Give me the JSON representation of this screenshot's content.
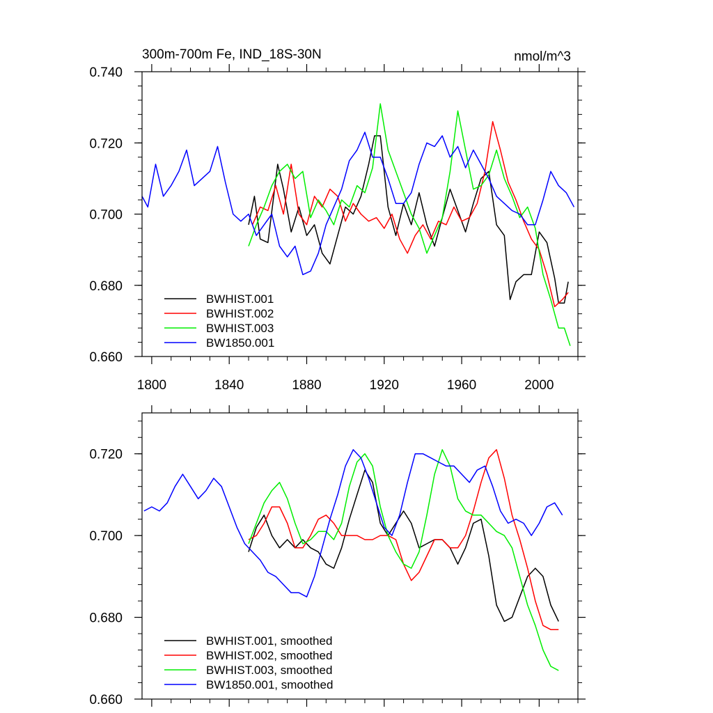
{
  "chart_data": [
    {
      "type": "line",
      "title": "300m-700m Fe, IND_18S-30N",
      "units": "nmol/m^3",
      "xlim": [
        1795,
        2020
      ],
      "ylim": [
        0.66,
        0.74
      ],
      "x_ticks": [
        1800,
        1840,
        1880,
        1920,
        1960,
        2000
      ],
      "y_ticks": [
        0.66,
        0.68,
        0.7,
        0.72,
        0.74
      ],
      "y_tick_labels": [
        "0.660",
        "0.680",
        "0.700",
        "0.720",
        "0.740"
      ],
      "x_tick_labels": [
        "1800",
        "1840",
        "1880",
        "1920",
        "1960",
        "2000"
      ],
      "legend_position": "bottom-left",
      "series": [
        {
          "name": "BWHIST.001",
          "color": "#000000",
          "x": [
            1850,
            1853,
            1856,
            1860,
            1865,
            1868,
            1872,
            1876,
            1880,
            1884,
            1888,
            1892,
            1896,
            1900,
            1904,
            1908,
            1912,
            1915,
            1918,
            1922,
            1926,
            1930,
            1934,
            1938,
            1942,
            1946,
            1950,
            1954,
            1958,
            1962,
            1966,
            1970,
            1974,
            1978,
            1982,
            1985,
            1988,
            1992,
            1996,
            2000,
            2004,
            2008,
            2010,
            2013,
            2015
          ],
          "values": [
            0.697,
            0.705,
            0.693,
            0.692,
            0.714,
            0.707,
            0.695,
            0.702,
            0.694,
            0.697,
            0.689,
            0.686,
            0.694,
            0.702,
            0.7,
            0.705,
            0.714,
            0.722,
            0.722,
            0.702,
            0.694,
            0.703,
            0.697,
            0.706,
            0.697,
            0.691,
            0.699,
            0.707,
            0.701,
            0.695,
            0.703,
            0.71,
            0.712,
            0.697,
            0.694,
            0.676,
            0.681,
            0.683,
            0.683,
            0.695,
            0.692,
            0.682,
            0.675,
            0.675,
            0.681
          ]
        },
        {
          "name": "BWHIST.002",
          "color": "#ff0000",
          "x": [
            1852,
            1856,
            1860,
            1864,
            1868,
            1872,
            1876,
            1880,
            1884,
            1888,
            1892,
            1896,
            1900,
            1904,
            1908,
            1912,
            1916,
            1920,
            1924,
            1928,
            1932,
            1936,
            1940,
            1944,
            1948,
            1952,
            1956,
            1960,
            1964,
            1968,
            1972,
            1976,
            1980,
            1984,
            1988,
            1992,
            1996,
            2000,
            2004,
            2008,
            2012,
            2015
          ],
          "values": [
            0.697,
            0.702,
            0.701,
            0.708,
            0.7,
            0.714,
            0.7,
            0.697,
            0.705,
            0.702,
            0.707,
            0.705,
            0.698,
            0.703,
            0.7,
            0.698,
            0.699,
            0.696,
            0.7,
            0.693,
            0.689,
            0.694,
            0.697,
            0.693,
            0.698,
            0.697,
            0.702,
            0.698,
            0.699,
            0.703,
            0.712,
            0.726,
            0.718,
            0.709,
            0.704,
            0.698,
            0.693,
            0.69,
            0.683,
            0.674,
            0.676,
            0.678
          ]
        },
        {
          "name": "BWHIST.003",
          "color": "#00ee00",
          "x": [
            1850,
            1854,
            1858,
            1862,
            1866,
            1870,
            1874,
            1878,
            1882,
            1886,
            1890,
            1894,
            1898,
            1902,
            1906,
            1910,
            1914,
            1918,
            1922,
            1926,
            1930,
            1934,
            1938,
            1942,
            1946,
            1950,
            1954,
            1958,
            1962,
            1966,
            1970,
            1974,
            1978,
            1982,
            1986,
            1990,
            1994,
            1998,
            2002,
            2006,
            2010,
            2013,
            2016
          ],
          "values": [
            0.691,
            0.697,
            0.702,
            0.708,
            0.712,
            0.714,
            0.71,
            0.712,
            0.699,
            0.704,
            0.701,
            0.697,
            0.704,
            0.702,
            0.708,
            0.706,
            0.713,
            0.731,
            0.718,
            0.712,
            0.706,
            0.7,
            0.696,
            0.689,
            0.694,
            0.699,
            0.712,
            0.729,
            0.718,
            0.707,
            0.708,
            0.711,
            0.718,
            0.71,
            0.705,
            0.699,
            0.702,
            0.696,
            0.683,
            0.676,
            0.668,
            0.668,
            0.663
          ]
        },
        {
          "name": "BW1850.001",
          "color": "#0000ff",
          "x": [
            1795,
            1798,
            1802,
            1806,
            1810,
            1814,
            1818,
            1822,
            1826,
            1830,
            1834,
            1838,
            1842,
            1846,
            1850,
            1854,
            1858,
            1862,
            1866,
            1870,
            1874,
            1878,
            1882,
            1886,
            1890,
            1894,
            1898,
            1902,
            1906,
            1910,
            1914,
            1918,
            1922,
            1926,
            1930,
            1934,
            1938,
            1942,
            1946,
            1950,
            1954,
            1958,
            1962,
            1966,
            1970,
            1974,
            1978,
            1982,
            1986,
            1990,
            1994,
            1998,
            2002,
            2006,
            2010,
            2014,
            2018
          ],
          "values": [
            0.705,
            0.702,
            0.714,
            0.705,
            0.708,
            0.712,
            0.718,
            0.708,
            0.71,
            0.712,
            0.719,
            0.709,
            0.7,
            0.698,
            0.7,
            0.694,
            0.697,
            0.7,
            0.691,
            0.688,
            0.691,
            0.683,
            0.684,
            0.689,
            0.697,
            0.702,
            0.707,
            0.715,
            0.718,
            0.723,
            0.716,
            0.716,
            0.71,
            0.703,
            0.703,
            0.706,
            0.714,
            0.72,
            0.719,
            0.722,
            0.716,
            0.719,
            0.713,
            0.718,
            0.714,
            0.71,
            0.705,
            0.703,
            0.701,
            0.7,
            0.697,
            0.697,
            0.704,
            0.712,
            0.708,
            0.706,
            0.702
          ]
        }
      ]
    },
    {
      "type": "line",
      "title": "",
      "xlim": [
        1795,
        2020
      ],
      "ylim": [
        0.66,
        0.73
      ],
      "x_ticks": [
        1800,
        1840,
        1880,
        1920,
        1960,
        2000
      ],
      "y_ticks": [
        0.66,
        0.68,
        0.7,
        0.72
      ],
      "y_tick_labels": [
        "0.660",
        "0.680",
        "0.700",
        "0.720"
      ],
      "legend_position": "bottom-left",
      "series": [
        {
          "name": "BWHIST.001, smoothed",
          "color": "#000000",
          "x": [
            1850,
            1854,
            1858,
            1862,
            1866,
            1870,
            1874,
            1878,
            1882,
            1886,
            1890,
            1894,
            1898,
            1902,
            1906,
            1910,
            1914,
            1918,
            1922,
            1926,
            1930,
            1934,
            1938,
            1942,
            1946,
            1950,
            1954,
            1958,
            1962,
            1966,
            1970,
            1974,
            1978,
            1982,
            1986,
            1990,
            1994,
            1998,
            2002,
            2006,
            2010
          ],
          "values": [
            0.696,
            0.702,
            0.705,
            0.7,
            0.697,
            0.699,
            0.697,
            0.699,
            0.697,
            0.696,
            0.693,
            0.692,
            0.697,
            0.704,
            0.71,
            0.716,
            0.713,
            0.703,
            0.7,
            0.703,
            0.706,
            0.703,
            0.697,
            0.698,
            0.699,
            0.699,
            0.697,
            0.693,
            0.697,
            0.703,
            0.704,
            0.695,
            0.683,
            0.679,
            0.68,
            0.685,
            0.69,
            0.692,
            0.69,
            0.683,
            0.679
          ]
        },
        {
          "name": "BWHIST.002, smoothed",
          "color": "#ff0000",
          "x": [
            1850,
            1854,
            1858,
            1862,
            1866,
            1870,
            1874,
            1878,
            1882,
            1886,
            1890,
            1894,
            1898,
            1902,
            1906,
            1910,
            1914,
            1918,
            1922,
            1926,
            1930,
            1934,
            1938,
            1942,
            1946,
            1950,
            1954,
            1958,
            1962,
            1966,
            1970,
            1974,
            1978,
            1982,
            1986,
            1990,
            1994,
            1998,
            2002,
            2006,
            2010
          ],
          "values": [
            0.699,
            0.7,
            0.703,
            0.707,
            0.707,
            0.703,
            0.697,
            0.697,
            0.7,
            0.704,
            0.705,
            0.703,
            0.7,
            0.7,
            0.7,
            0.699,
            0.699,
            0.7,
            0.7,
            0.699,
            0.693,
            0.689,
            0.691,
            0.695,
            0.699,
            0.699,
            0.697,
            0.697,
            0.7,
            0.706,
            0.713,
            0.719,
            0.721,
            0.714,
            0.705,
            0.699,
            0.692,
            0.684,
            0.678,
            0.677,
            0.677
          ]
        },
        {
          "name": "BWHIST.003, smoothed",
          "color": "#00ee00",
          "x": [
            1850,
            1854,
            1858,
            1862,
            1866,
            1870,
            1874,
            1878,
            1882,
            1886,
            1890,
            1894,
            1898,
            1902,
            1906,
            1910,
            1914,
            1918,
            1922,
            1926,
            1930,
            1934,
            1938,
            1942,
            1946,
            1950,
            1954,
            1958,
            1962,
            1966,
            1970,
            1974,
            1978,
            1982,
            1986,
            1990,
            1994,
            1998,
            2002,
            2006,
            2010
          ],
          "values": [
            0.698,
            0.703,
            0.708,
            0.711,
            0.713,
            0.709,
            0.703,
            0.698,
            0.699,
            0.701,
            0.701,
            0.699,
            0.703,
            0.712,
            0.718,
            0.72,
            0.717,
            0.707,
            0.7,
            0.696,
            0.693,
            0.692,
            0.696,
            0.705,
            0.715,
            0.721,
            0.717,
            0.709,
            0.706,
            0.705,
            0.705,
            0.703,
            0.701,
            0.7,
            0.697,
            0.69,
            0.683,
            0.678,
            0.672,
            0.668,
            0.667
          ]
        },
        {
          "name": "BW1850.001, smoothed",
          "color": "#0000ff",
          "x": [
            1796,
            1800,
            1804,
            1808,
            1812,
            1816,
            1820,
            1824,
            1828,
            1832,
            1836,
            1840,
            1844,
            1848,
            1852,
            1856,
            1860,
            1864,
            1868,
            1872,
            1876,
            1880,
            1884,
            1888,
            1892,
            1896,
            1900,
            1904,
            1908,
            1912,
            1916,
            1920,
            1924,
            1928,
            1932,
            1936,
            1940,
            1944,
            1948,
            1952,
            1956,
            1960,
            1964,
            1968,
            1972,
            1976,
            1980,
            1984,
            1988,
            1992,
            1996,
            2000,
            2004,
            2008,
            2012
          ],
          "values": [
            0.706,
            0.707,
            0.706,
            0.708,
            0.712,
            0.715,
            0.712,
            0.709,
            0.711,
            0.714,
            0.712,
            0.707,
            0.702,
            0.698,
            0.696,
            0.694,
            0.691,
            0.69,
            0.688,
            0.686,
            0.686,
            0.685,
            0.69,
            0.697,
            0.704,
            0.71,
            0.717,
            0.721,
            0.719,
            0.714,
            0.708,
            0.702,
            0.7,
            0.705,
            0.713,
            0.72,
            0.72,
            0.719,
            0.718,
            0.717,
            0.717,
            0.715,
            0.713,
            0.716,
            0.717,
            0.712,
            0.706,
            0.703,
            0.704,
            0.703,
            0.7,
            0.703,
            0.707,
            0.708,
            0.705
          ]
        }
      ]
    }
  ]
}
